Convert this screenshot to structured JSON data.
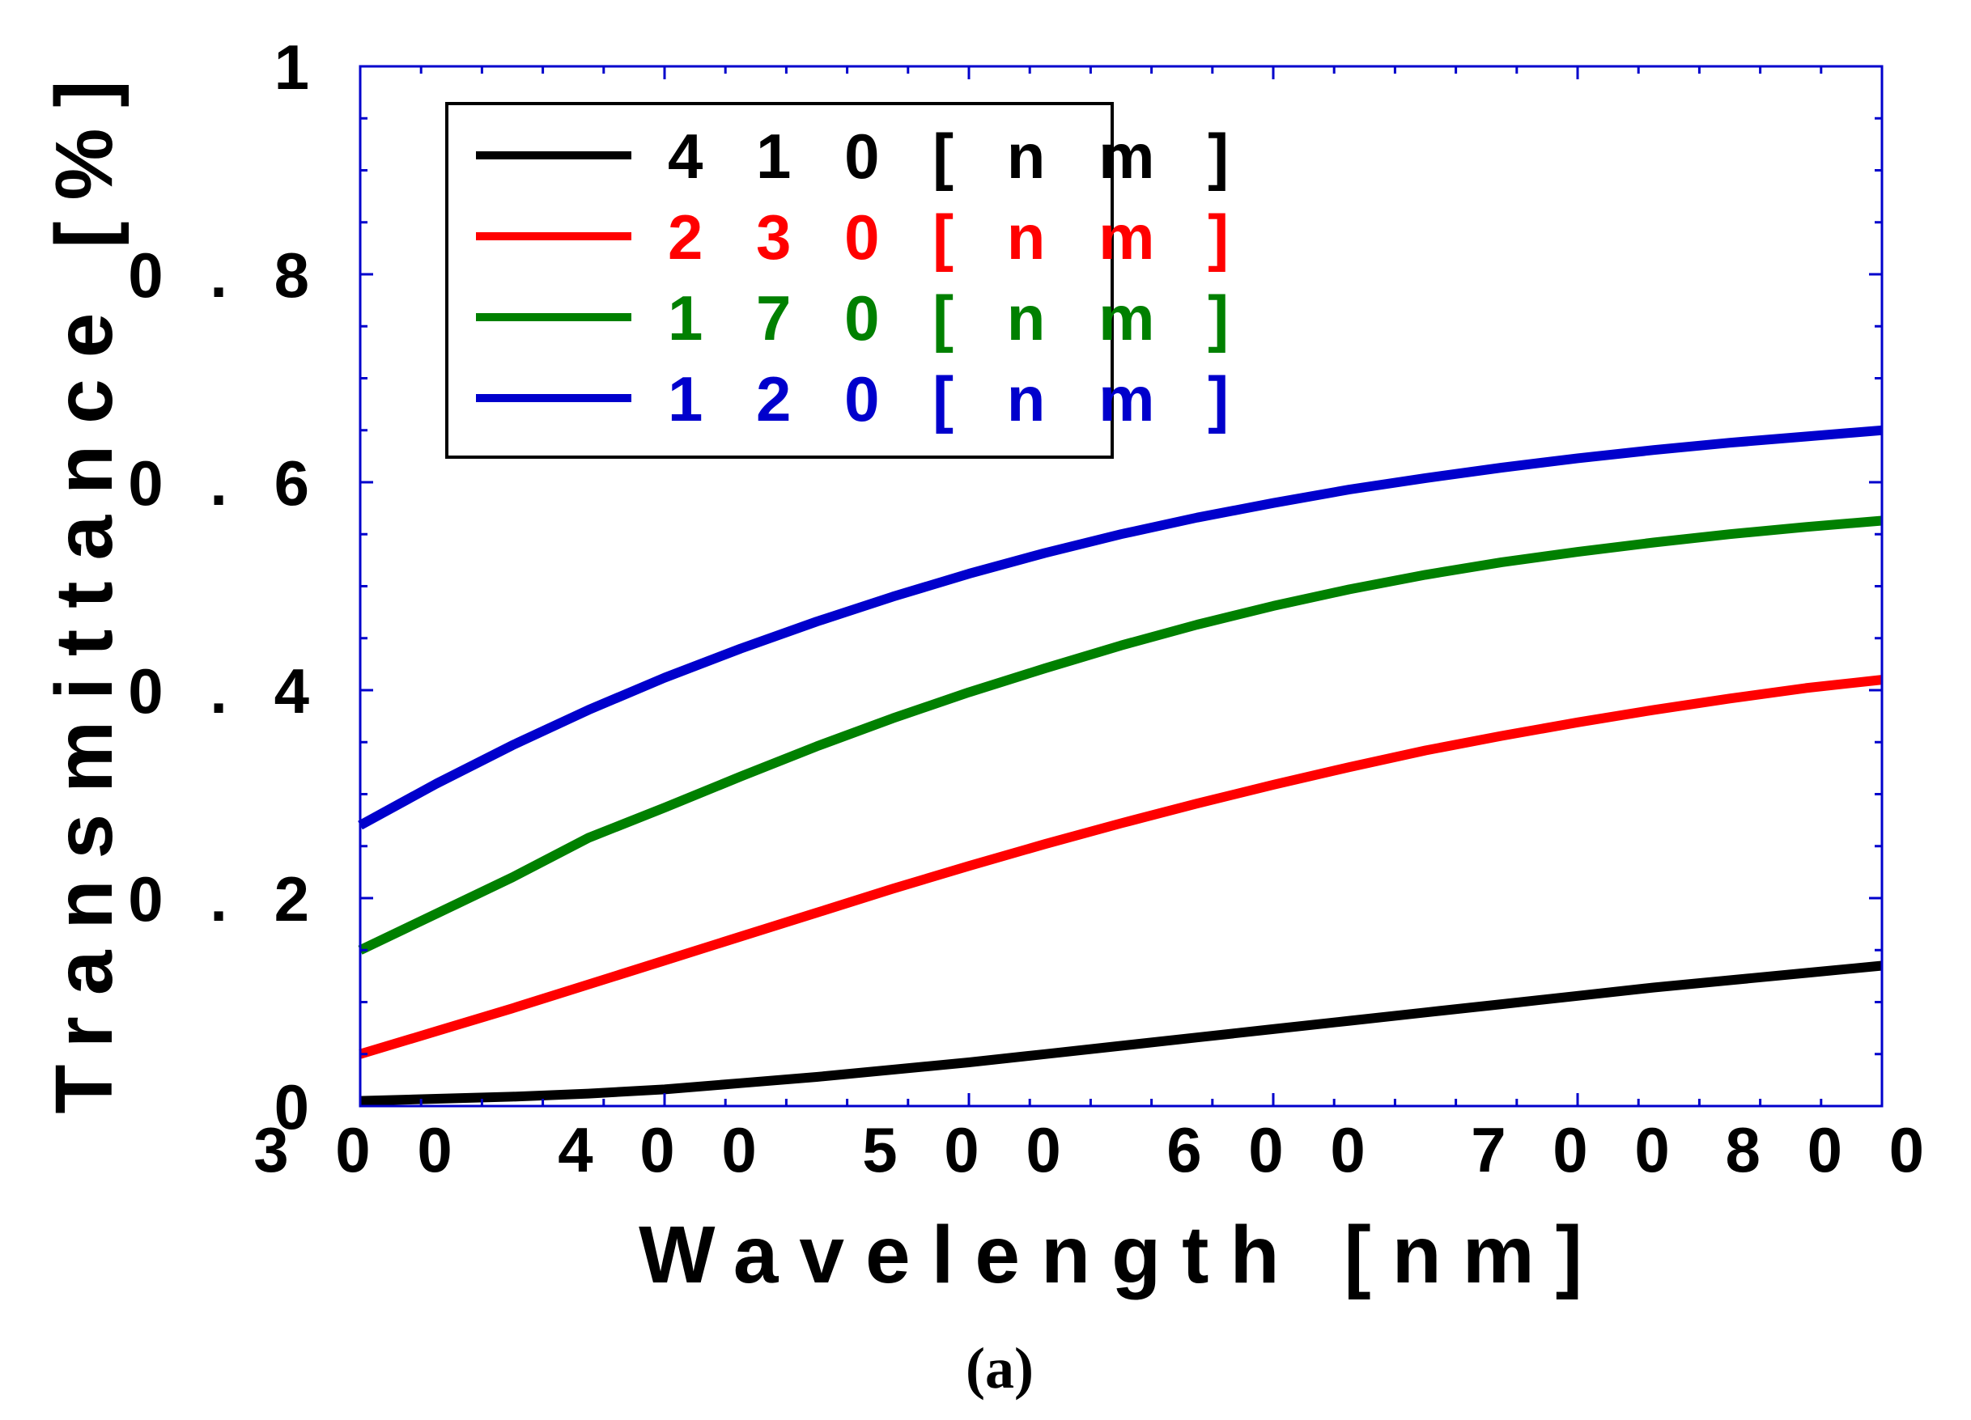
{
  "chart_data": {
    "type": "line",
    "title": "",
    "xlabel": "Wavelength [nm]",
    "ylabel": "Transmittance [%]",
    "xlim": [
      300,
      800
    ],
    "ylim": [
      0,
      1
    ],
    "xticks": [
      300,
      400,
      500,
      600,
      700,
      800
    ],
    "yticks": [
      0,
      0.2,
      0.4,
      0.6,
      0.8,
      1
    ],
    "xtick_labels": [
      "3 0 0",
      "4 0 0",
      "5 0 0",
      "6 0 0",
      "7 0 0",
      "8 0 0"
    ],
    "ytick_labels": [
      "0",
      "0 . 2",
      "0 . 4",
      "0 . 6",
      "0 . 8",
      "1"
    ],
    "grid": false,
    "legend_position": "top-left",
    "panel_label": "(a)",
    "x": [
      300,
      325,
      350,
      375,
      400,
      425,
      450,
      475,
      500,
      525,
      550,
      575,
      600,
      625,
      650,
      675,
      700,
      725,
      750,
      775,
      800
    ],
    "series": [
      {
        "name": "4 1 0   [ n m ]",
        "color": "#000000",
        "values": [
          0.005,
          0.007,
          0.009,
          0.012,
          0.016,
          0.022,
          0.028,
          0.035,
          0.042,
          0.05,
          0.058,
          0.066,
          0.074,
          0.082,
          0.09,
          0.098,
          0.106,
          0.114,
          0.121,
          0.128,
          0.135
        ]
      },
      {
        "name": "2 3 0   [ n m ]",
        "color": "#ff0000",
        "values": [
          0.05,
          0.072,
          0.094,
          0.117,
          0.14,
          0.163,
          0.186,
          0.209,
          0.231,
          0.252,
          0.272,
          0.291,
          0.309,
          0.326,
          0.342,
          0.356,
          0.369,
          0.381,
          0.392,
          0.402,
          0.41
        ]
      },
      {
        "name": "1 7 0   [ n m ]",
        "color": "#008000",
        "values": [
          0.15,
          0.185,
          0.22,
          0.258,
          0.287,
          0.317,
          0.346,
          0.373,
          0.398,
          0.421,
          0.443,
          0.463,
          0.481,
          0.497,
          0.511,
          0.523,
          0.533,
          0.542,
          0.55,
          0.557,
          0.563
        ]
      },
      {
        "name": "1 2 0   [ n m ]",
        "color": "#0000cc",
        "values": [
          0.27,
          0.31,
          0.347,
          0.381,
          0.412,
          0.44,
          0.466,
          0.49,
          0.512,
          0.532,
          0.55,
          0.566,
          0.58,
          0.593,
          0.604,
          0.614,
          0.623,
          0.631,
          0.638,
          0.644,
          0.65
        ]
      }
    ]
  }
}
